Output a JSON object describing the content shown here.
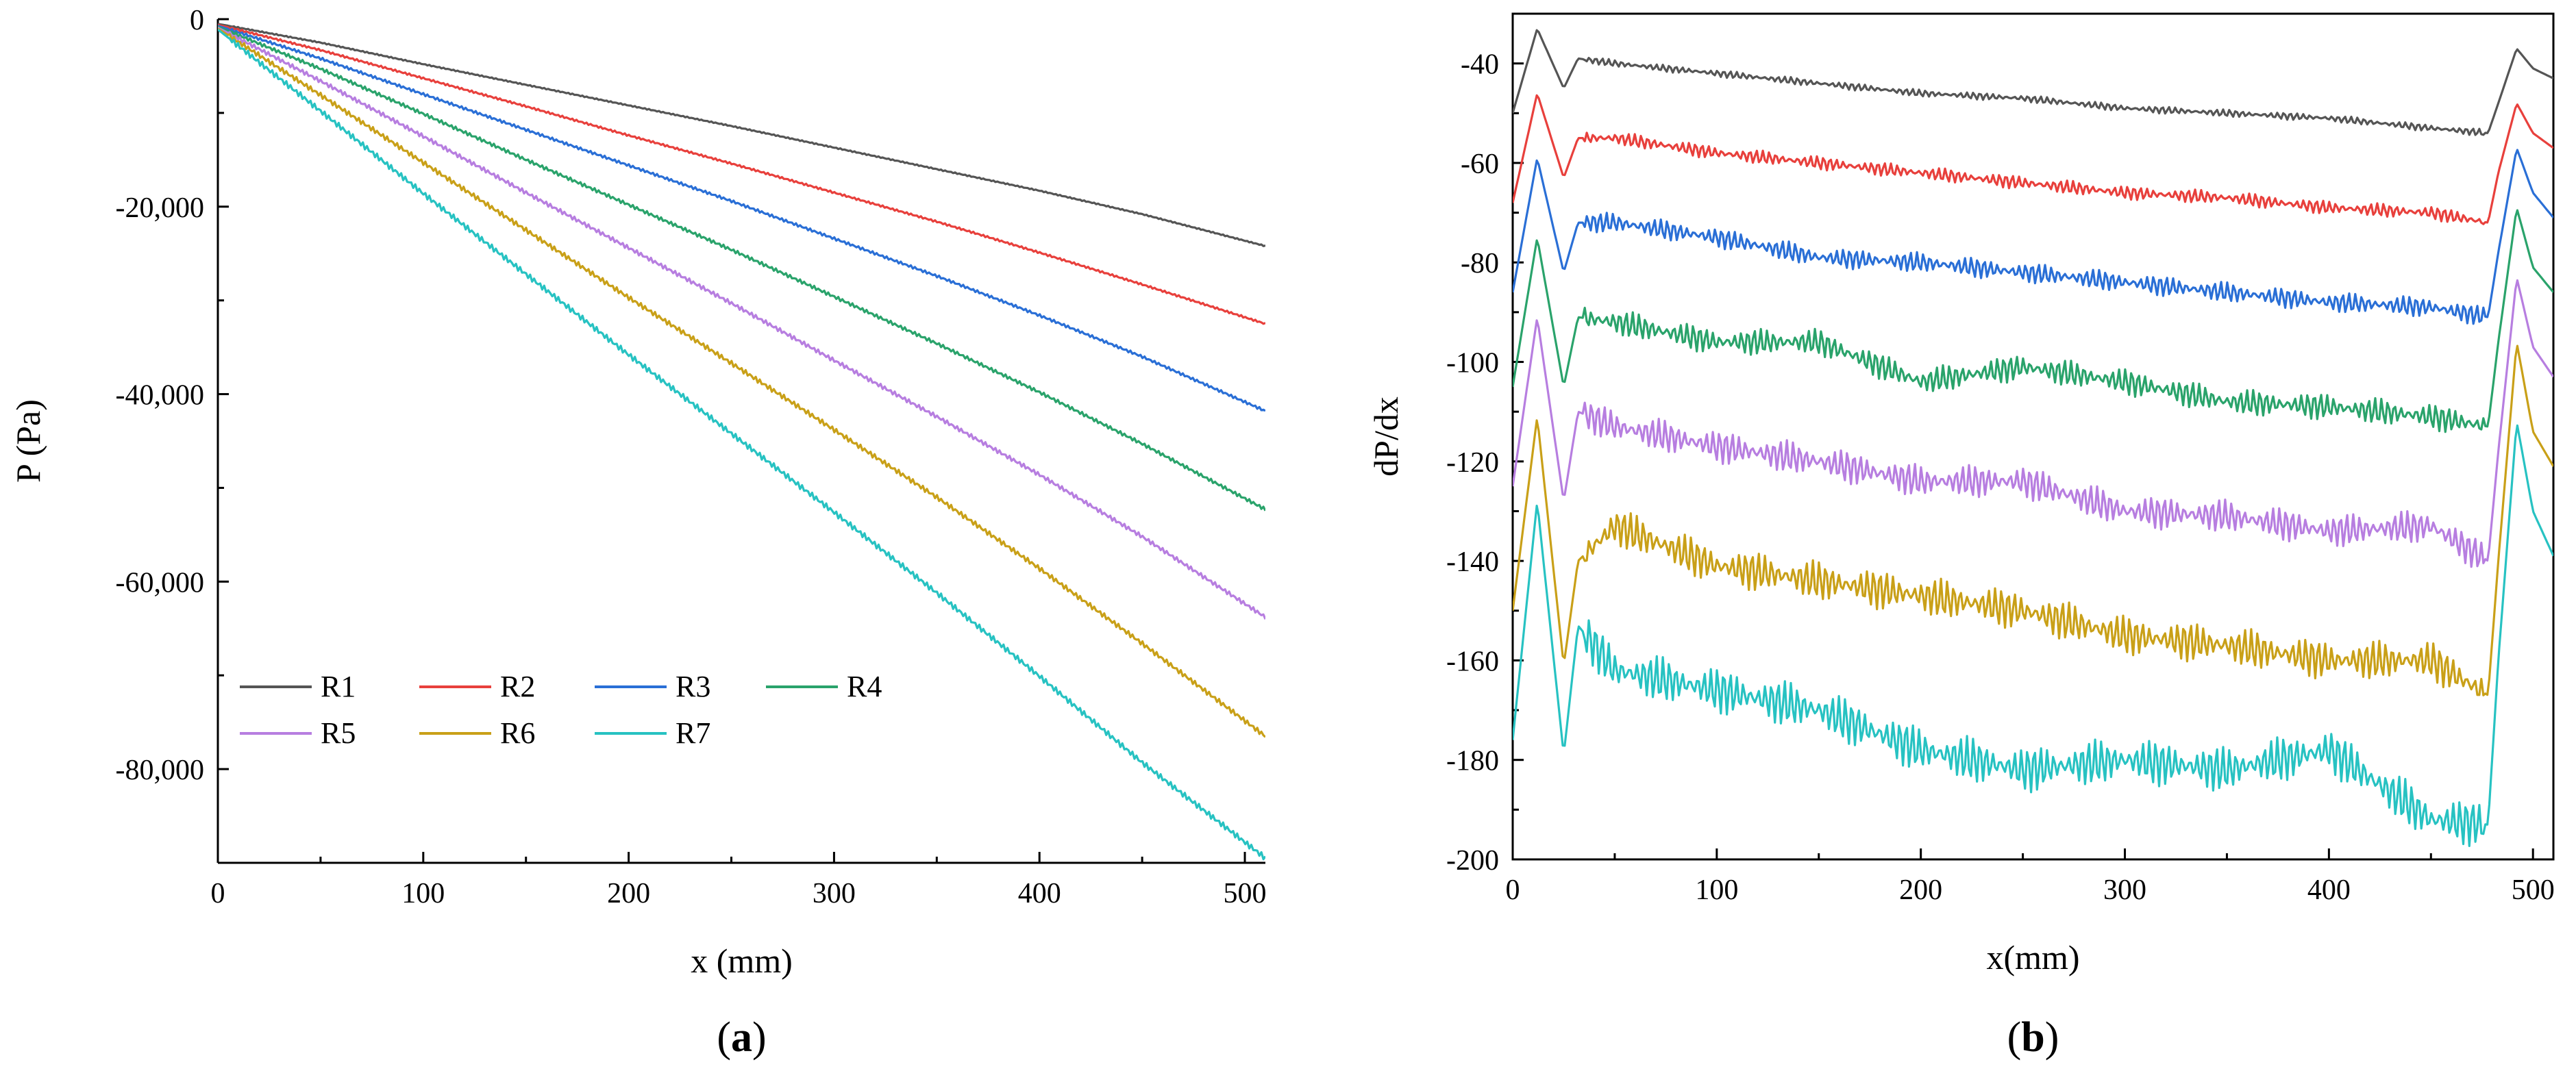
{
  "colors": {
    "R1": "#555555",
    "R2": "#e8403c",
    "R3": "#2a6fd6",
    "R4": "#2aa36b",
    "R5": "#b77ee0",
    "R6": "#c9a018",
    "R7": "#27c2c2"
  },
  "chart_data": [
    {
      "id": "a",
      "type": "line",
      "panel_label": {
        "open": "(",
        "letter": "a",
        "close": ")"
      },
      "title": "",
      "xlabel": "x (mm)",
      "ylabel": "P (Pa)",
      "xlim": [
        0,
        510
      ],
      "ylim": [
        -90000,
        0
      ],
      "xticks": [
        0,
        100,
        200,
        300,
        400,
        500
      ],
      "xtick_labels": [
        "0",
        "100",
        "200",
        "300",
        "400",
        "500"
      ],
      "yticks": [
        0,
        -20000,
        -40000,
        -60000,
        -80000
      ],
      "ytick_labels": [
        "0",
        "-20,000",
        "-40,000",
        "-60,000",
        "-80,000"
      ],
      "legend": {
        "placement": "lower-left",
        "rows": [
          [
            "R1",
            "R2",
            "R3",
            "R4"
          ],
          [
            "R5",
            "R6",
            "R7"
          ]
        ]
      },
      "series": [
        {
          "name": "R1",
          "x": [
            0,
            50,
            100,
            150,
            200,
            250,
            300,
            350,
            400,
            450,
            510
          ],
          "values": [
            -500,
            -2500,
            -4800,
            -7000,
            -9200,
            -11400,
            -13700,
            -16000,
            -18300,
            -20800,
            -24200
          ]
        },
        {
          "name": "R2",
          "x": [
            0,
            50,
            100,
            150,
            200,
            250,
            300,
            350,
            400,
            450,
            510
          ],
          "values": [
            -600,
            -3300,
            -6300,
            -9300,
            -12400,
            -15400,
            -18500,
            -21600,
            -24900,
            -28300,
            -32500
          ]
        },
        {
          "name": "R3",
          "x": [
            0,
            50,
            100,
            150,
            200,
            250,
            300,
            350,
            400,
            450,
            510
          ],
          "values": [
            -700,
            -4200,
            -8000,
            -11800,
            -15600,
            -19400,
            -23400,
            -27400,
            -31600,
            -36000,
            -41800
          ]
        },
        {
          "name": "R4",
          "x": [
            0,
            50,
            100,
            150,
            200,
            250,
            300,
            350,
            400,
            450,
            510
          ],
          "values": [
            -800,
            -5300,
            -10100,
            -15000,
            -19800,
            -24600,
            -29600,
            -34600,
            -39800,
            -45300,
            -52300
          ]
        },
        {
          "name": "R5",
          "x": [
            0,
            50,
            100,
            150,
            200,
            250,
            300,
            350,
            400,
            450,
            510
          ],
          "values": [
            -900,
            -6600,
            -12500,
            -18500,
            -24400,
            -30300,
            -36400,
            -42400,
            -48600,
            -55200,
            -63800
          ]
        },
        {
          "name": "R6",
          "x": [
            0,
            50,
            100,
            150,
            200,
            250,
            300,
            350,
            400,
            450,
            510
          ],
          "values": [
            -1000,
            -8100,
            -15300,
            -22500,
            -29700,
            -36700,
            -43800,
            -51000,
            -58600,
            -66600,
            -76500
          ]
        },
        {
          "name": "R7",
          "x": [
            0,
            50,
            100,
            150,
            200,
            250,
            300,
            350,
            400,
            450,
            510
          ],
          "values": [
            -1100,
            -9800,
            -18600,
            -27200,
            -35800,
            -44200,
            -52600,
            -61200,
            -70100,
            -79300,
            -89500
          ]
        }
      ]
    },
    {
      "id": "b",
      "type": "line",
      "panel_label": {
        "open": "(",
        "letter": "b",
        "close": ")"
      },
      "title": "",
      "xlabel": "x(mm)",
      "ylabel": "dP/dx",
      "xlim": [
        0,
        510
      ],
      "ylim": [
        -200,
        -30
      ],
      "xticks": [
        0,
        100,
        200,
        300,
        400,
        500
      ],
      "xtick_labels": [
        "0",
        "100",
        "200",
        "300",
        "400",
        "500"
      ],
      "yticks": [
        -40,
        -60,
        -80,
        -100,
        -120,
        -140,
        -160,
        -180,
        -200
      ],
      "ytick_labels": [
        "-40",
        "-60",
        "-80",
        "-100",
        "-120",
        "-140",
        "-160",
        "-180",
        "-200"
      ],
      "series": [
        {
          "name": "R1",
          "x": [
            0,
            12,
            25,
            32,
            50,
            100,
            150,
            200,
            250,
            300,
            350,
            400,
            450,
            478,
            483,
            492,
            500,
            510
          ],
          "values": [
            -50,
            -33,
            -45,
            -39,
            -40,
            -42,
            -44,
            -46,
            -47,
            -49,
            -50,
            -51,
            -53,
            -54,
            -48,
            -37,
            -41,
            -43
          ]
        },
        {
          "name": "R2",
          "x": [
            0,
            12,
            25,
            32,
            50,
            100,
            150,
            200,
            250,
            300,
            350,
            400,
            450,
            478,
            483,
            492,
            500,
            510
          ],
          "values": [
            -68,
            -46,
            -63,
            -55,
            -55,
            -58,
            -60,
            -62,
            -64,
            -66,
            -67,
            -69,
            -70,
            -72,
            -62,
            -48,
            -54,
            -57
          ]
        },
        {
          "name": "R3",
          "x": [
            0,
            12,
            25,
            32,
            50,
            100,
            150,
            200,
            250,
            300,
            350,
            400,
            450,
            478,
            483,
            492,
            500,
            510
          ],
          "values": [
            -86,
            -59,
            -82,
            -72,
            -72,
            -75,
            -79,
            -80,
            -82,
            -84,
            -86,
            -88,
            -89,
            -91,
            -78,
            -57,
            -66,
            -71
          ]
        },
        {
          "name": "R4",
          "x": [
            0,
            12,
            25,
            32,
            50,
            100,
            150,
            200,
            250,
            300,
            350,
            400,
            450,
            478,
            483,
            492,
            500,
            510
          ],
          "values": [
            -105,
            -75,
            -105,
            -91,
            -92,
            -96,
            -96,
            -104,
            -101,
            -104,
            -108,
            -109,
            -111,
            -113,
            -96,
            -69,
            -81,
            -86
          ]
        },
        {
          "name": "R5",
          "x": [
            0,
            12,
            25,
            32,
            50,
            100,
            150,
            200,
            250,
            300,
            350,
            400,
            450,
            478,
            483,
            492,
            500,
            510
          ],
          "values": [
            -125,
            -91,
            -128,
            -110,
            -113,
            -117,
            -120,
            -124,
            -124,
            -130,
            -131,
            -134,
            -133,
            -140,
            -118,
            -83,
            -97,
            -103
          ]
        },
        {
          "name": "R6",
          "x": [
            0,
            12,
            25,
            32,
            50,
            100,
            150,
            200,
            250,
            300,
            350,
            400,
            450,
            478,
            483,
            492,
            500,
            510
          ],
          "values": [
            -150,
            -111,
            -161,
            -140,
            -133,
            -141,
            -144,
            -147,
            -150,
            -155,
            -157,
            -160,
            -160,
            -167,
            -140,
            -96,
            -114,
            -121
          ]
        },
        {
          "name": "R7",
          "x": [
            0,
            12,
            25,
            32,
            50,
            100,
            150,
            200,
            250,
            300,
            350,
            400,
            450,
            478,
            483,
            492,
            500,
            510
          ],
          "values": [
            -176,
            -128,
            -179,
            -153,
            -162,
            -166,
            -170,
            -178,
            -182,
            -180,
            -182,
            -178,
            -192,
            -193,
            -160,
            -112,
            -130,
            -139
          ]
        }
      ]
    }
  ]
}
